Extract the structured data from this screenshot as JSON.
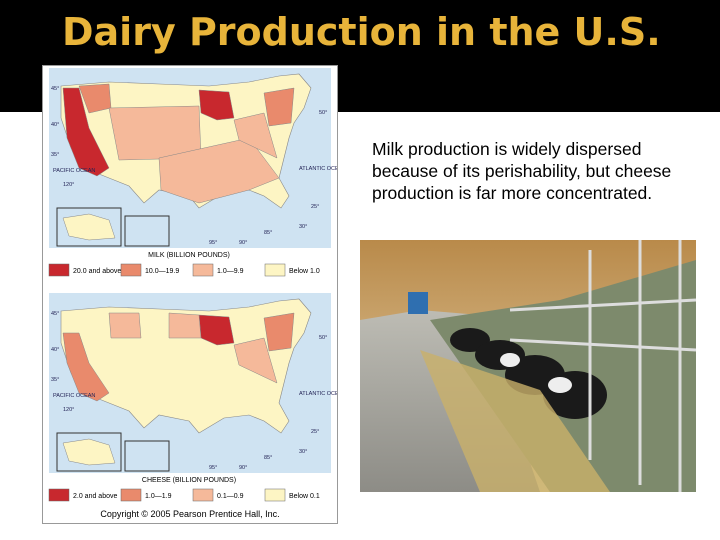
{
  "header": {
    "title": "Dairy Production in the U.S."
  },
  "body": {
    "text": "Milk production is widely dispersed because of its perishability, but cheese production is far more concentrated."
  },
  "maps": [
    {
      "title": "MILK (BILLION POUNDS)",
      "legend": [
        "20.0 and above",
        "10.0—19.9",
        "1.0—9.9",
        "Below 1.0"
      ]
    },
    {
      "title": "CHEESE (BILLION POUNDS)",
      "legend": [
        "2.0 and above",
        "1.0—1.9",
        "0.1—0.9",
        "Below 0.1"
      ]
    }
  ],
  "map_labels": {
    "lat_45": "45°",
    "lat_40": "40°",
    "lat_35": "35°",
    "lon_120": "120°",
    "lon_95": "95°",
    "lon_90": "90°",
    "lon_85": "85°",
    "lat_30": "30°",
    "lat_25": "25°",
    "lat_50": "50°",
    "pacific": "PACIFIC OCEAN",
    "atlantic": "ATLANTIC OCEAN"
  },
  "footer": {
    "copyright": "Copyright © 2005 Pearson Prentice Hall, Inc."
  }
}
